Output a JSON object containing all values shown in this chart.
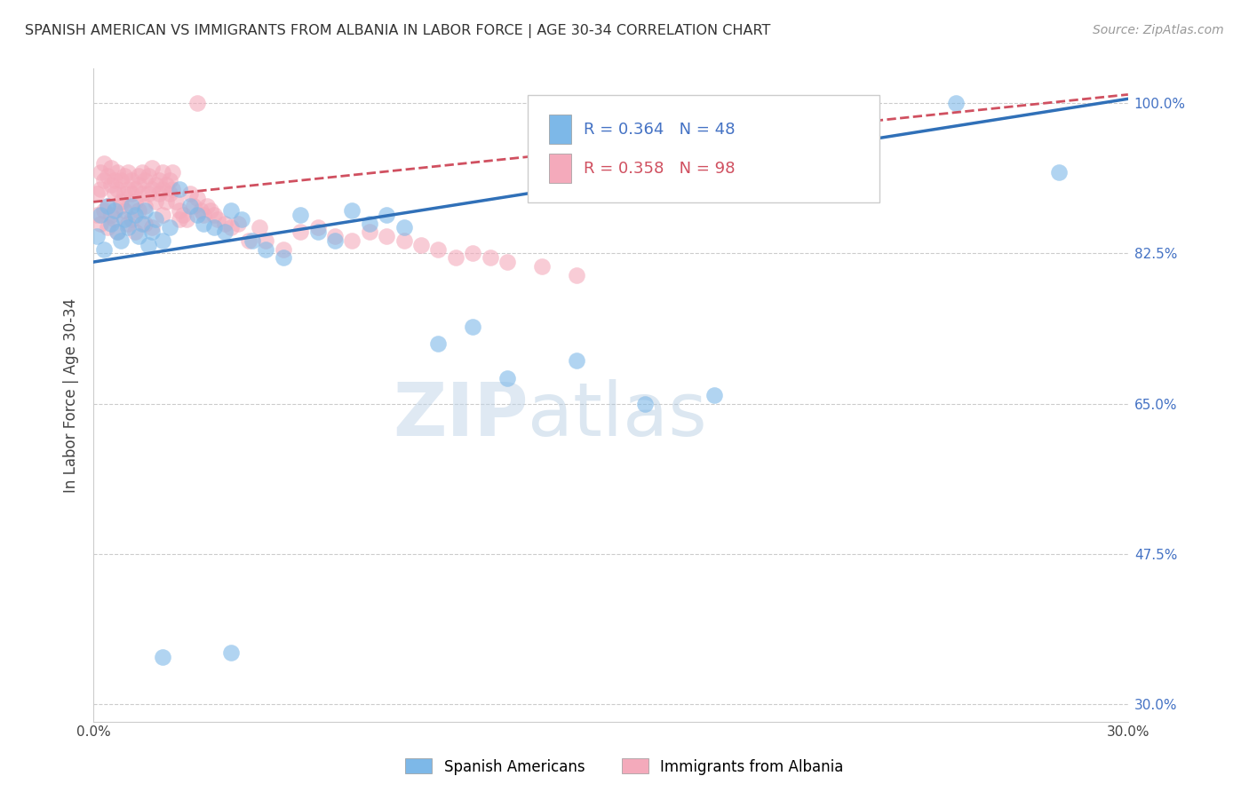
{
  "title": "SPANISH AMERICAN VS IMMIGRANTS FROM ALBANIA IN LABOR FORCE | AGE 30-34 CORRELATION CHART",
  "source": "Source: ZipAtlas.com",
  "ylabel": "In Labor Force | Age 30-34",
  "xlim": [
    0.0,
    0.3
  ],
  "ylim": [
    0.28,
    1.04
  ],
  "xticks": [
    0.0,
    0.05,
    0.1,
    0.15,
    0.2,
    0.25,
    0.3
  ],
  "xticklabels": [
    "0.0%",
    "",
    "",
    "",
    "",
    "",
    "30.0%"
  ],
  "ytick_positions": [
    1.0,
    0.825,
    0.65,
    0.475,
    0.3
  ],
  "ytick_labels": [
    "100.0%",
    "82.5%",
    "65.0%",
    "47.5%",
    "30.0%"
  ],
  "blue_color": "#7DB8E8",
  "pink_color": "#F4AABB",
  "blue_line_color": "#3070B8",
  "pink_line_color": "#D05060",
  "watermark": "ZIPatlas",
  "legend1_label": "Spanish Americans",
  "legend2_label": "Immigrants from Albania",
  "blue_line_x0": 0.0,
  "blue_line_y0": 0.815,
  "blue_line_x1": 0.3,
  "blue_line_y1": 1.005,
  "pink_line_x0": 0.0,
  "pink_line_y0": 0.885,
  "pink_line_x1": 0.3,
  "pink_line_y1": 1.01,
  "blue_scatter_x": [
    0.001,
    0.002,
    0.003,
    0.004,
    0.005,
    0.006,
    0.007,
    0.008,
    0.009,
    0.01,
    0.011,
    0.012,
    0.013,
    0.014,
    0.015,
    0.016,
    0.017,
    0.018,
    0.02,
    0.022,
    0.025,
    0.028,
    0.03,
    0.032,
    0.035,
    0.038,
    0.04,
    0.043,
    0.046,
    0.05,
    0.055,
    0.06,
    0.065,
    0.07,
    0.075,
    0.08,
    0.085,
    0.09,
    0.1,
    0.11,
    0.12,
    0.14,
    0.16,
    0.18,
    0.25,
    0.28,
    0.02,
    0.04
  ],
  "blue_scatter_y": [
    0.845,
    0.87,
    0.83,
    0.88,
    0.86,
    0.875,
    0.85,
    0.84,
    0.865,
    0.855,
    0.88,
    0.87,
    0.845,
    0.86,
    0.875,
    0.835,
    0.85,
    0.865,
    0.84,
    0.855,
    0.9,
    0.88,
    0.87,
    0.86,
    0.855,
    0.85,
    0.875,
    0.865,
    0.84,
    0.83,
    0.82,
    0.87,
    0.85,
    0.84,
    0.875,
    0.86,
    0.87,
    0.855,
    0.72,
    0.74,
    0.68,
    0.7,
    0.65,
    0.66,
    1.0,
    0.92,
    0.355,
    0.36
  ],
  "pink_scatter_x": [
    0.001,
    0.002,
    0.002,
    0.003,
    0.003,
    0.004,
    0.004,
    0.005,
    0.005,
    0.006,
    0.006,
    0.007,
    0.007,
    0.008,
    0.008,
    0.009,
    0.009,
    0.01,
    0.01,
    0.011,
    0.011,
    0.012,
    0.012,
    0.013,
    0.013,
    0.014,
    0.014,
    0.015,
    0.015,
    0.016,
    0.016,
    0.017,
    0.017,
    0.018,
    0.018,
    0.019,
    0.019,
    0.02,
    0.02,
    0.021,
    0.021,
    0.022,
    0.022,
    0.023,
    0.023,
    0.024,
    0.025,
    0.026,
    0.027,
    0.028,
    0.029,
    0.03,
    0.031,
    0.032,
    0.033,
    0.034,
    0.035,
    0.036,
    0.038,
    0.04,
    0.042,
    0.045,
    0.048,
    0.05,
    0.055,
    0.06,
    0.065,
    0.07,
    0.075,
    0.08,
    0.085,
    0.09,
    0.095,
    0.1,
    0.105,
    0.11,
    0.115,
    0.12,
    0.13,
    0.14,
    0.001,
    0.002,
    0.003,
    0.004,
    0.005,
    0.006,
    0.007,
    0.008,
    0.009,
    0.01,
    0.011,
    0.012,
    0.013,
    0.015,
    0.017,
    0.02,
    0.025,
    0.03
  ],
  "pink_scatter_y": [
    0.895,
    0.9,
    0.92,
    0.91,
    0.93,
    0.88,
    0.915,
    0.905,
    0.925,
    0.895,
    0.91,
    0.9,
    0.92,
    0.885,
    0.91,
    0.895,
    0.915,
    0.9,
    0.92,
    0.895,
    0.91,
    0.9,
    0.885,
    0.915,
    0.905,
    0.895,
    0.92,
    0.88,
    0.91,
    0.895,
    0.915,
    0.9,
    0.925,
    0.885,
    0.905,
    0.91,
    0.895,
    0.9,
    0.92,
    0.885,
    0.905,
    0.895,
    0.91,
    0.9,
    0.92,
    0.885,
    0.875,
    0.87,
    0.865,
    0.895,
    0.88,
    0.89,
    0.875,
    0.87,
    0.88,
    0.875,
    0.87,
    0.865,
    0.86,
    0.855,
    0.86,
    0.84,
    0.855,
    0.84,
    0.83,
    0.85,
    0.855,
    0.845,
    0.84,
    0.85,
    0.845,
    0.84,
    0.835,
    0.83,
    0.82,
    0.825,
    0.82,
    0.815,
    0.81,
    0.8,
    0.87,
    0.86,
    0.875,
    0.855,
    0.87,
    0.865,
    0.85,
    0.88,
    0.875,
    0.86,
    0.865,
    0.85,
    0.875,
    0.86,
    0.855,
    0.87,
    0.865,
    1.0
  ]
}
